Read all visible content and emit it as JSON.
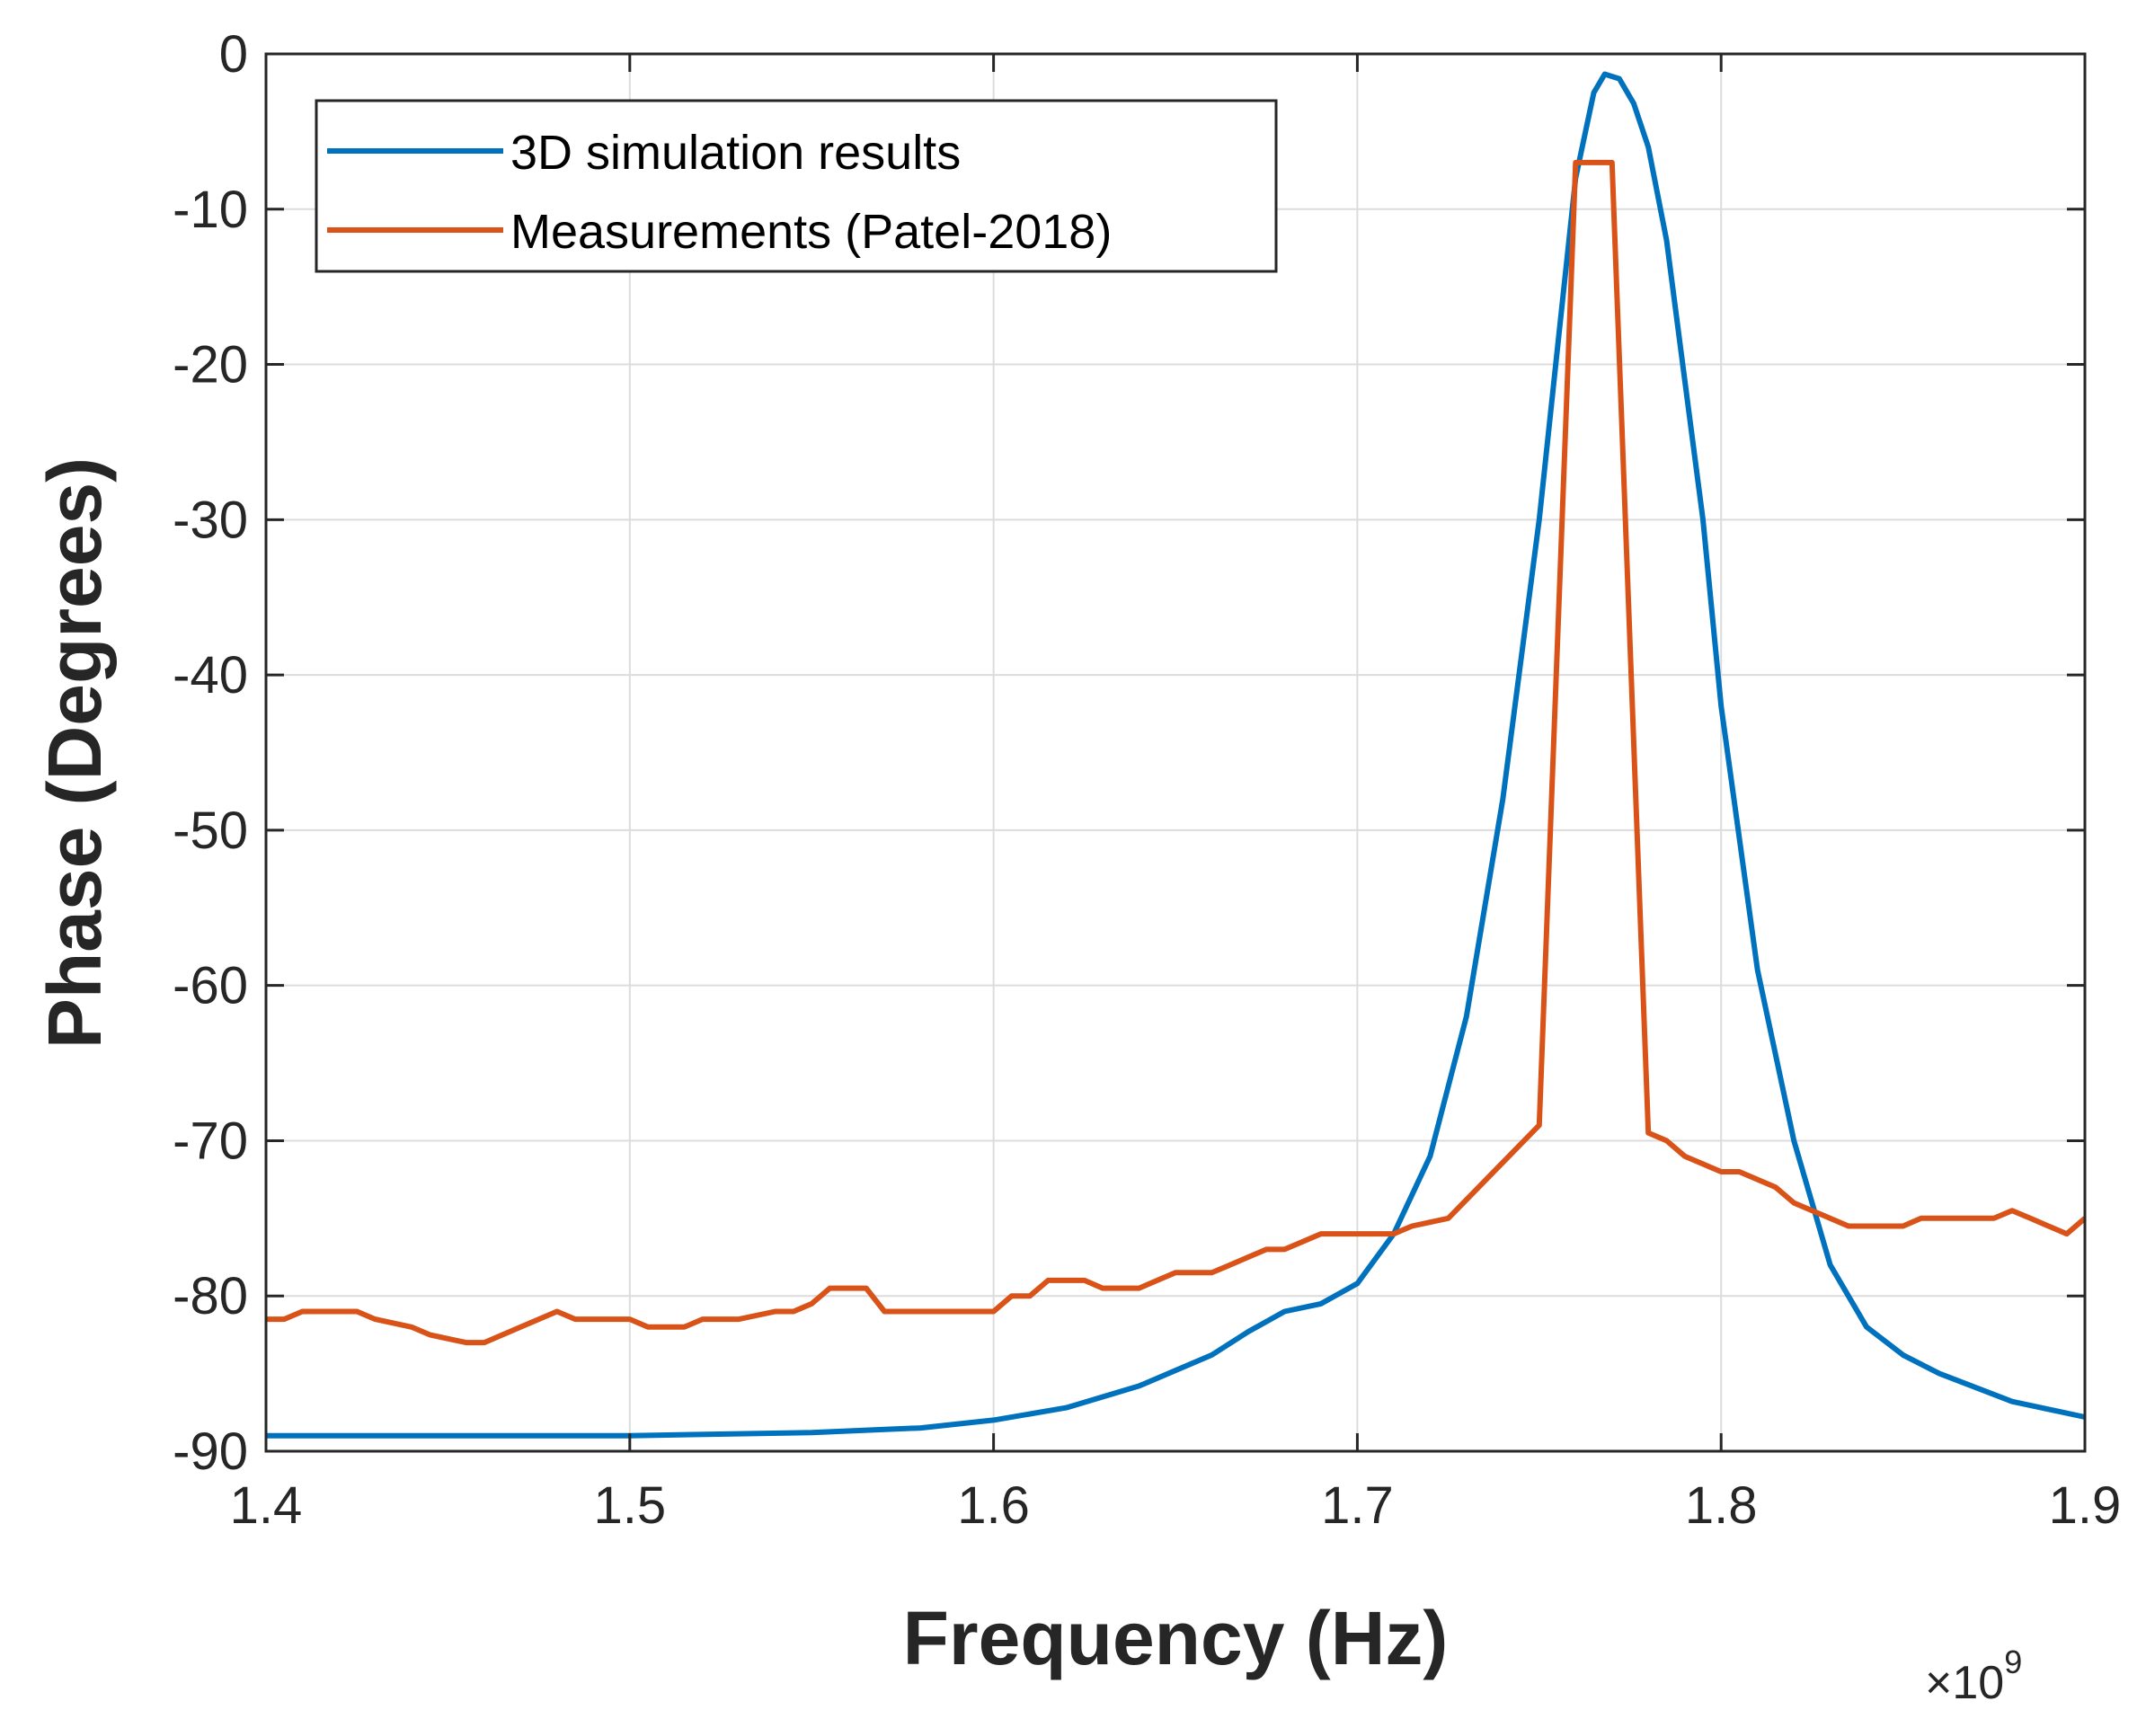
{
  "colors": {
    "simulation": "#0072BD",
    "measurement": "#D95319",
    "grid": "#dcdcdc",
    "axis": "#262626"
  },
  "chart_data": {
    "type": "line",
    "title": "",
    "xlabel": "Frequency (Hz)",
    "ylabel": "Phase (Degrees)",
    "x_exponent_label": "×10",
    "x_exponent_power": "9",
    "xlim": [
      1.4,
      1.9
    ],
    "ylim": [
      -90,
      0
    ],
    "xticks": [
      1.4,
      1.5,
      1.6,
      1.7,
      1.8,
      1.9
    ],
    "xtick_labels": [
      "1.4",
      "1.5",
      "1.6",
      "1.7",
      "1.8",
      "1.9"
    ],
    "yticks": [
      0,
      -10,
      -20,
      -30,
      -40,
      -50,
      -60,
      -70,
      -80,
      -90
    ],
    "ytick_labels": [
      "0",
      "-10",
      "-20",
      "-30",
      "-40",
      "-50",
      "-60",
      "-70",
      "-80",
      "-90"
    ],
    "grid": true,
    "legend_position": "top-left",
    "series": [
      {
        "name": "3D simulation results",
        "color": "#0072BD",
        "x": [
          1.4,
          1.45,
          1.5,
          1.55,
          1.58,
          1.6,
          1.62,
          1.64,
          1.66,
          1.67,
          1.68,
          1.69,
          1.7,
          1.71,
          1.72,
          1.73,
          1.74,
          1.75,
          1.755,
          1.76,
          1.765,
          1.768,
          1.772,
          1.776,
          1.78,
          1.785,
          1.79,
          1.795,
          1.8,
          1.81,
          1.82,
          1.83,
          1.84,
          1.85,
          1.86,
          1.88,
          1.9
        ],
        "y": [
          -89,
          -89,
          -89,
          -88.8,
          -88.5,
          -88,
          -87.2,
          -85.8,
          -83.8,
          -82.3,
          -81,
          -80.5,
          -79.2,
          -76,
          -71,
          -62,
          -48,
          -30,
          -19,
          -8,
          -2.5,
          -1.3,
          -1.6,
          -3.2,
          -6,
          -12,
          -21,
          -30,
          -42,
          -59,
          -70,
          -78,
          -82,
          -83.8,
          -85,
          -86.8,
          -87.8
        ]
      },
      {
        "name": "Measurements (Patel-2018)",
        "color": "#D95319",
        "x": [
          1.4,
          1.405,
          1.41,
          1.425,
          1.43,
          1.44,
          1.445,
          1.455,
          1.46,
          1.47,
          1.475,
          1.48,
          1.485,
          1.49,
          1.5,
          1.505,
          1.515,
          1.52,
          1.53,
          1.54,
          1.545,
          1.55,
          1.555,
          1.565,
          1.57,
          1.58,
          1.6,
          1.605,
          1.61,
          1.615,
          1.62,
          1.625,
          1.63,
          1.635,
          1.64,
          1.645,
          1.65,
          1.655,
          1.66,
          1.665,
          1.67,
          1.675,
          1.68,
          1.685,
          1.69,
          1.695,
          1.71,
          1.715,
          1.725,
          1.75,
          1.76,
          1.768,
          1.77,
          1.78,
          1.785,
          1.79,
          1.795,
          1.8,
          1.805,
          1.815,
          1.82,
          1.825,
          1.835,
          1.84,
          1.85,
          1.855,
          1.875,
          1.88,
          1.885,
          1.89,
          1.895,
          1.9
        ],
        "y": [
          -81.5,
          -81.5,
          -81,
          -81,
          -81.5,
          -82,
          -82.5,
          -83,
          -83,
          -82,
          -81.5,
          -81,
          -81.5,
          -81.5,
          -81.5,
          -82,
          -82,
          -81.5,
          -81.5,
          -81,
          -81,
          -80.5,
          -79.5,
          -79.5,
          -81,
          -81,
          -81,
          -80,
          -80,
          -79,
          -79,
          -79,
          -79.5,
          -79.5,
          -79.5,
          -79,
          -78.5,
          -78.5,
          -78.5,
          -78,
          -77.5,
          -77,
          -77,
          -76.5,
          -76,
          -76,
          -76,
          -75.5,
          -75,
          -69,
          -7,
          -7,
          -7,
          -69.5,
          -70,
          -71,
          -71.5,
          -72,
          -72,
          -73,
          -74,
          -74.5,
          -75.5,
          -75.5,
          -75.5,
          -75,
          -75,
          -74.5,
          -75,
          -75.5,
          -76,
          -75
        ]
      }
    ]
  }
}
